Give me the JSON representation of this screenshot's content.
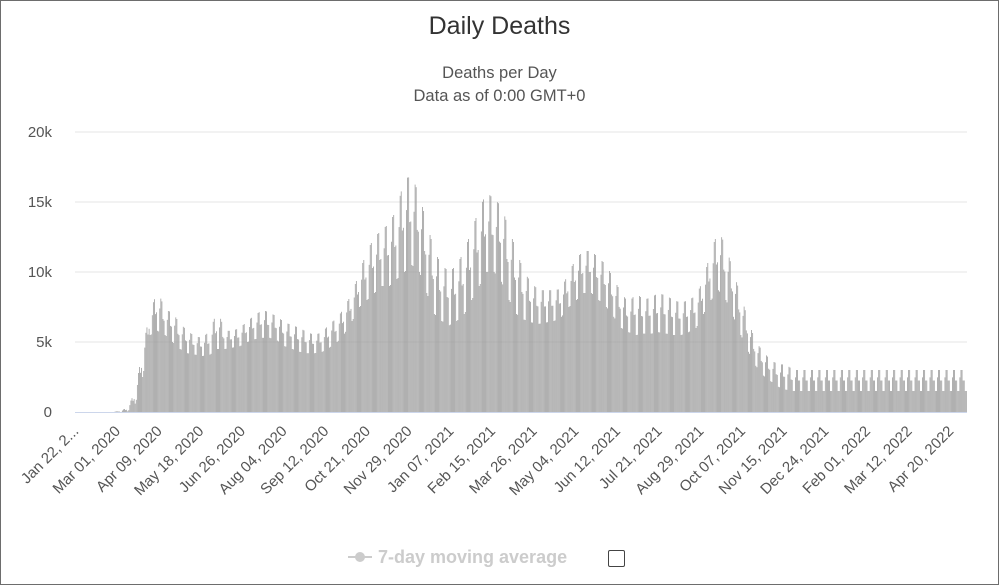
{
  "chart_data": {
    "type": "bar",
    "title": "Daily Deaths",
    "subtitle": [
      "Deaths per Day",
      "Data as of 0:00 GMT+0"
    ],
    "xlabel": "",
    "ylabel": "",
    "ylim": [
      0,
      20000
    ],
    "yticks": [
      0,
      5000,
      10000,
      15000,
      20000
    ],
    "ytick_labels": [
      "0",
      "5k",
      "10k",
      "15k",
      "20k"
    ],
    "xtick_labels": [
      "Jan 22, 2...",
      "Mar 01, 2020",
      "Apr 09, 2020",
      "May 18, 2020",
      "Jun 26, 2020",
      "Aug 04, 2020",
      "Sep 12, 2020",
      "Oct 21, 2020",
      "Nov 29, 2020",
      "Jan 07, 2021",
      "Feb 15, 2021",
      "Mar 26, 2021",
      "May 04, 2021",
      "Jun 12, 2021",
      "Jul 21, 2021",
      "Aug 29, 2021",
      "Oct 07, 2021",
      "Nov 15, 2021",
      "Dec 24, 2021",
      "Feb 01, 2022",
      "Mar 12, 2022",
      "Apr 20, 2022"
    ],
    "x_start": "2020-01-22",
    "x_end": "2022-05-05",
    "grid": true,
    "bar_color": "#999999",
    "legend": [
      {
        "name": "7-day moving average",
        "visible": false
      }
    ],
    "series": [
      {
        "name": "Daily Deaths",
        "weekly_peak": [
          0,
          0,
          0,
          0,
          0,
          0,
          100,
          300,
          1500,
          4500,
          7200,
          8700,
          7300,
          7100,
          6300,
          5800,
          5400,
          5300,
          5800,
          7300,
          5800,
          5800,
          6000,
          6500,
          6900,
          7300,
          7100,
          6800,
          6400,
          6200,
          6000,
          5700,
          5500,
          5700,
          6300,
          6700,
          7500,
          8500,
          10000,
          11500,
          12500,
          13000,
          13500,
          14500,
          16700,
          16800,
          15500,
          13500,
          11500,
          10500,
          10000,
          10500,
          11500,
          13000,
          14500,
          15700,
          15200,
          14700,
          13000,
          11500,
          10000,
          9200,
          8700,
          8700,
          8700,
          8800,
          10000,
          11000,
          11500,
          11500,
          11000,
          10500,
          9500,
          8500,
          7800,
          8500,
          8000,
          8200,
          8500,
          8300,
          8000,
          7800,
          8000,
          8300,
          9500,
          11500,
          13000,
          11800,
          10000,
          8300,
          6500,
          5000,
          4300,
          3700,
          3400,
          3400,
          3000
        ],
        "weekly_trough": [
          0,
          0,
          0,
          0,
          0,
          0,
          0,
          50,
          600,
          2500,
          5500,
          5800,
          5500,
          5000,
          4500,
          4200,
          4100,
          4000,
          4100,
          4500,
          4500,
          4600,
          4700,
          5000,
          5200,
          5300,
          5300,
          5100,
          4700,
          4500,
          4300,
          4200,
          4200,
          4300,
          4600,
          5000,
          5600,
          6500,
          7500,
          8000,
          8500,
          9000,
          9000,
          9500,
          10000,
          10500,
          10000,
          8500,
          7000,
          6500,
          6200,
          6500,
          7000,
          8000,
          9000,
          10000,
          10000,
          9300,
          8000,
          7000,
          6600,
          6400,
          6300,
          6400,
          6500,
          6800,
          7500,
          8000,
          8500,
          8500,
          8000,
          7500,
          6800,
          6000,
          5700,
          5500,
          5600,
          5600,
          5700,
          5600,
          5500,
          5500,
          5700,
          6000,
          7000,
          8000,
          8700,
          8000,
          6800,
          5500,
          4300,
          3300,
          2600,
          2200,
          1800,
          1600,
          1500
        ]
      }
    ]
  }
}
